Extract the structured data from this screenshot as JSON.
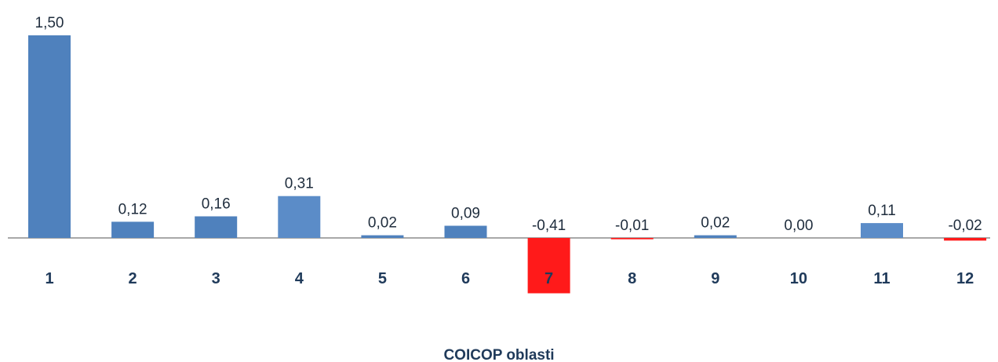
{
  "chart_data": {
    "type": "bar",
    "categories": [
      "1",
      "2",
      "3",
      "4",
      "5",
      "6",
      "7",
      "8",
      "9",
      "10",
      "11",
      "12"
    ],
    "values": [
      1.5,
      0.12,
      0.16,
      0.31,
      0.02,
      0.09,
      -0.41,
      -0.01,
      0.02,
      0.0,
      0.11,
      -0.02
    ],
    "value_labels": [
      "1,50",
      "0,12",
      "0,16",
      "0,31",
      "0,02",
      "0,09",
      "-0,41",
      "-0,01",
      "0,02",
      "0,00",
      "0,11",
      "-0,02"
    ],
    "xlabel": "COICOP oblasti",
    "ylabel": "",
    "ylim": [
      -0.41,
      1.5
    ],
    "grid": false,
    "colors": {
      "positive": "#4f81bd",
      "positive_highlight": "#5b8cc8",
      "negative": "#ff1a1a",
      "axis": "#8c8c8c"
    }
  }
}
